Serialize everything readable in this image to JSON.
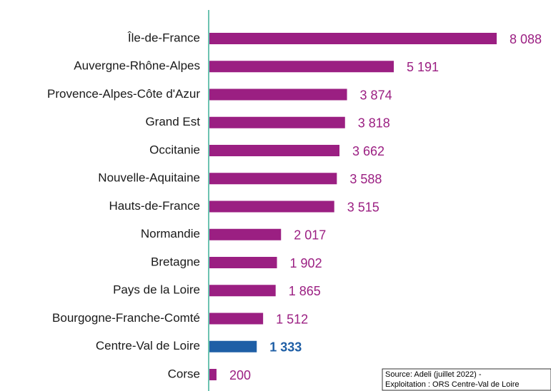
{
  "chart_data": {
    "type": "barh",
    "categories": [
      "Île-de-France",
      "Auvergne-Rhône-Alpes",
      "Provence-Alpes-Côte d'Azur",
      "Grand Est",
      "Occitanie",
      "Nouvelle-Aquitaine",
      "Hauts-de-France",
      "Normandie",
      "Bretagne",
      "Pays de la Loire",
      "Bourgogne-Franche-Comté",
      "Centre-Val de Loire",
      "Corse"
    ],
    "values": [
      8088,
      5191,
      3874,
      3818,
      3662,
      3588,
      3515,
      2017,
      1902,
      1865,
      1512,
      1333,
      200
    ],
    "value_labels": [
      "8 088",
      "5 191",
      "3 874",
      "3 818",
      "3 662",
      "3 588",
      "3 515",
      "2 017",
      "1 902",
      "1 865",
      "1 512",
      "1 333",
      "200"
    ],
    "colors": [
      "#9b1f82",
      "#9b1f82",
      "#9b1f82",
      "#9b1f82",
      "#9b1f82",
      "#9b1f82",
      "#9b1f82",
      "#9b1f82",
      "#9b1f82",
      "#9b1f82",
      "#9b1f82",
      "#1f5fa6",
      "#9b1f82"
    ],
    "source": [
      "Source: Adeli (juillet 2022) -",
      "Exploitation : ORS Centre-Val de Loire"
    ]
  }
}
